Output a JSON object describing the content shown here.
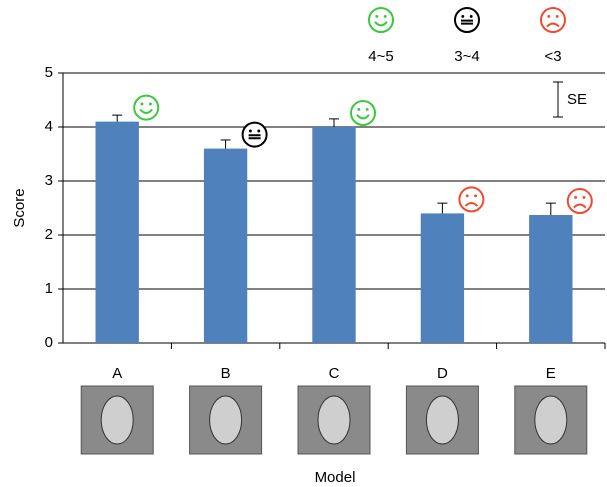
{
  "chart_data": {
    "type": "bar",
    "categories": [
      "A",
      "B",
      "C",
      "D",
      "E"
    ],
    "values": [
      4.1,
      3.6,
      4.0,
      2.4,
      2.37
    ],
    "errors": [
      0.12,
      0.16,
      0.15,
      0.19,
      0.22
    ],
    "faces": [
      "happy",
      "neutral",
      "happy",
      "sad",
      "sad"
    ],
    "color": "#4f81bd",
    "xlabel": "Model",
    "ylabel": "Score",
    "ylim": [
      0,
      5
    ],
    "yticks": [
      0,
      1,
      2,
      3,
      4,
      5
    ],
    "grid": true,
    "se_label": "SE",
    "rating_legend": [
      {
        "face": "happy",
        "color": "#3cc83c",
        "label": "4~5"
      },
      {
        "face": "neutral",
        "color": "#000000",
        "label": "3~4"
      },
      {
        "face": "sad",
        "color": "#f04a32",
        "label": "<3"
      }
    ]
  }
}
